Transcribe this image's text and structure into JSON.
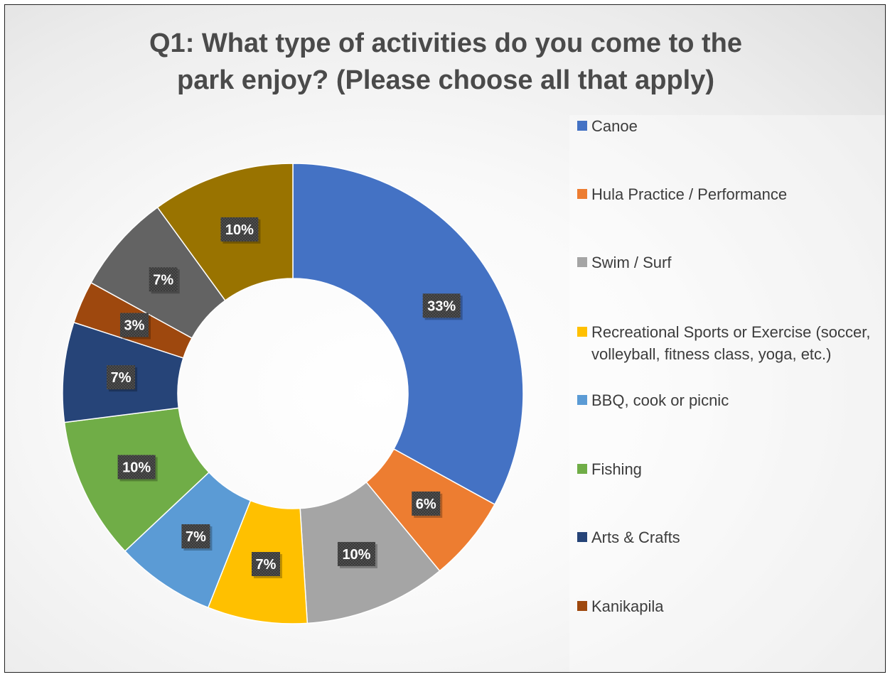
{
  "chart_data": {
    "type": "pie",
    "donut": true,
    "title_lines": [
      "Q1:  What type of activities do you come to the",
      "park enjoy? (Please choose all that apply)"
    ],
    "categories": [
      "Canoe",
      "Hula Practice / Performance",
      "Swim / Surf",
      "Recreational Sports or Exercise (soccer, volleyball, fitness class, yoga, etc.)",
      "BBQ, cook or picnic",
      "Fishing",
      "Arts & Crafts",
      "Kanikapila",
      "",
      ""
    ],
    "values": [
      33,
      6,
      10,
      7,
      7,
      10,
      7,
      3,
      7,
      10
    ],
    "data_labels": [
      "33%",
      "6%",
      "10%",
      "7%",
      "7%",
      "10%",
      "7%",
      "3%",
      "7%",
      "10%"
    ],
    "colors": [
      "#4472C4",
      "#ED7D31",
      "#A5A5A5",
      "#FFC000",
      "#5B9BD5",
      "#70AD47",
      "#264478",
      "#9E480E",
      "#636363",
      "#997300"
    ],
    "legend_position": "right",
    "legend_entries_shown": 8
  }
}
